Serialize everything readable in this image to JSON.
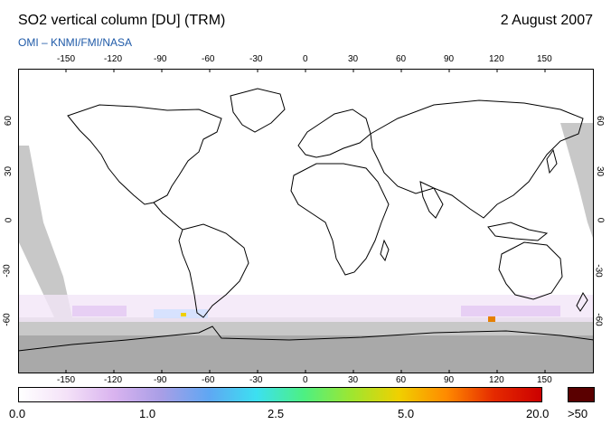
{
  "header": {
    "title": "SO2 vertical column [DU] (TRM)",
    "date": "2 August 2007",
    "subtitle": "OMI  –  KNMI/FMI/NASA"
  },
  "map": {
    "projection": "equirectangular",
    "lon_ticks": [
      "-150",
      "-120",
      "-90",
      "-60",
      "-30",
      "0",
      "30",
      "60",
      "90",
      "120",
      "150"
    ],
    "lat_ticks_left": [
      "60",
      "30",
      "0",
      "-30",
      "-60"
    ],
    "lat_ticks_right": [
      "60",
      "30",
      "0",
      "-30",
      "-60"
    ],
    "colors": {
      "coastline": "#000000",
      "land_background": "#ffffff",
      "no_data": "#c8c8c8",
      "no_data_dark": "#a0a0a0",
      "frame": "#000000"
    }
  },
  "colorbar": {
    "labels": [
      "0.0",
      "1.0",
      "2.5",
      "5.0",
      "20.0"
    ],
    "overflow_label": ">50",
    "overflow_color": "#5a0000",
    "gradient_stops": [
      "#ffffff",
      "#f4e2f8",
      "#d9b3ef",
      "#a89ee6",
      "#5fa7f3",
      "#3ce0f1",
      "#4df082",
      "#9ee630",
      "#f0d000",
      "#ff8a00",
      "#e52a00",
      "#cc0000"
    ]
  }
}
